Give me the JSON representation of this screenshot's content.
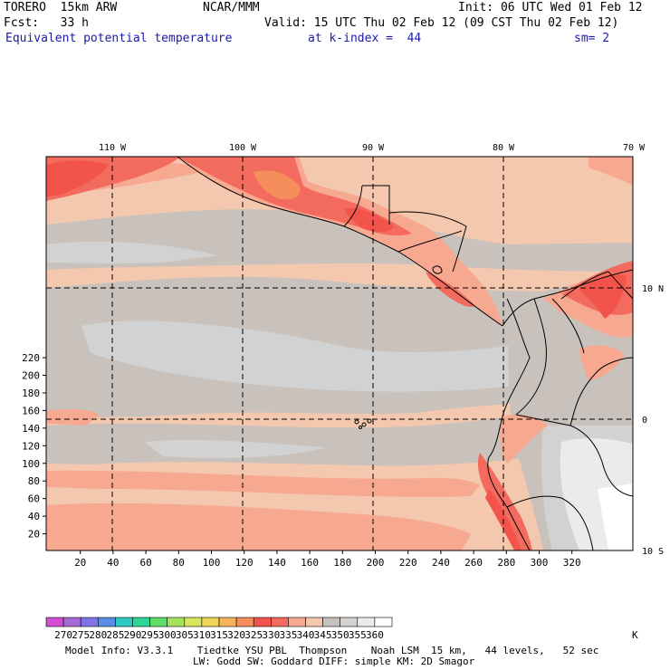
{
  "header": {
    "model": "TORERO  15km ARW",
    "center": "NCAR/MMM",
    "init": "Init: 06 UTC Wed 01 Feb 12",
    "fcst": "Fcst:   33 h",
    "valid": "Valid: 15 UTC Thu 02 Feb 12 (09 CST Thu 02 Feb 12)",
    "field": "Equivalent potential temperature",
    "level": "at k-index =  44",
    "smooth": "sm= 2"
  },
  "map": {
    "lon_labels": [
      "110 W",
      "100 W",
      "90 W",
      "80 W",
      "70 W"
    ],
    "lat_labels": [
      "10 N",
      "0",
      "10 S"
    ],
    "x_ticks": [
      "20",
      "40",
      "60",
      "80",
      "100",
      "120",
      "140",
      "160",
      "180",
      "200",
      "220",
      "240",
      "260",
      "280",
      "300",
      "320"
    ],
    "y_ticks": [
      "20",
      "40",
      "60",
      "80",
      "100",
      "120",
      "140",
      "160",
      "180",
      "200",
      "220"
    ]
  },
  "colorbar": {
    "labels": [
      "270",
      "275",
      "280",
      "285",
      "290",
      "295",
      "300",
      "305",
      "310",
      "315",
      "320",
      "325",
      "330",
      "335",
      "340",
      "345",
      "350",
      "355",
      "360"
    ],
    "unit": "K",
    "colors": [
      "#d24fd0",
      "#a46ad8",
      "#7f74e6",
      "#5b8ce6",
      "#2ec9c0",
      "#2fd69a",
      "#5fdc66",
      "#a5e35c",
      "#d8e65e",
      "#f1d65b",
      "#f5b35a",
      "#f58e5a",
      "#f2534a",
      "#f26b5e",
      "#f7a891",
      "#f4c8ae",
      "#c9c2bc",
      "#d2d2d2",
      "#ebebeb",
      "#ffffff"
    ]
  },
  "footer": {
    "line1": "Model Info: V3.3.1    Tiedtke YSU PBL  Thompson    Noah LSM  15 km,   44 levels,   52 sec",
    "line2": "LW: Godd SW: Goddard DIFF: simple KM: 2D Smagor"
  }
}
